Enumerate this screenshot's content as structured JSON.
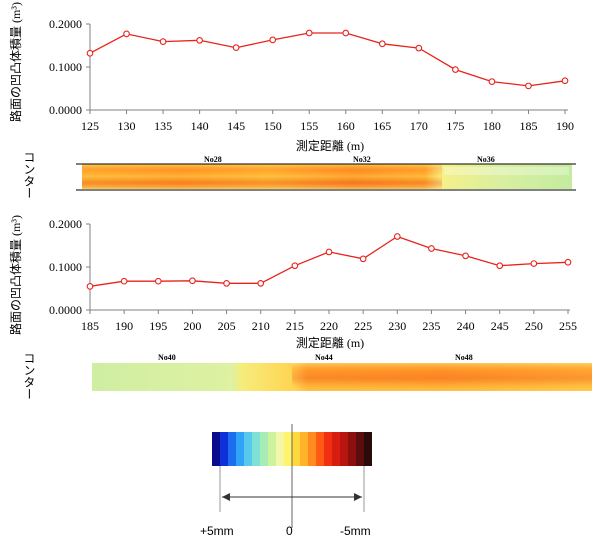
{
  "colors": {
    "series_line": "#e8231c",
    "axis": "#808080",
    "scale": [
      "#0a0a8c",
      "#0f2fd9",
      "#1e6cf0",
      "#2fa3f5",
      "#56c9ec",
      "#7fe0d6",
      "#a7ecb4",
      "#cdf2a0",
      "#f4f7a8",
      "#fff36b",
      "#ffd83b",
      "#ffb22a",
      "#ff8a1f",
      "#ff5a14",
      "#f03010",
      "#d81c10",
      "#b81410",
      "#8c1010",
      "#5a0d0d",
      "#2b0a0a"
    ]
  },
  "chart_data": [
    {
      "type": "line",
      "xlabel": "測定距離 (m)",
      "ylabel": "路面の凹凸体積量 (m³)",
      "x": [
        125,
        130,
        135,
        140,
        145,
        150,
        155,
        160,
        165,
        170,
        175,
        180,
        185,
        190
      ],
      "series": [
        {
          "values": [
            0.132,
            0.177,
            0.159,
            0.162,
            0.145,
            0.163,
            0.179,
            0.179,
            0.154,
            0.144,
            0.094,
            0.066,
            0.056,
            0.068
          ]
        }
      ],
      "xlim": [
        125,
        190
      ],
      "ylim": [
        0,
        0.2
      ],
      "yticks": [
        "0.0000",
        "0.1000",
        "0.2000"
      ],
      "grid": false
    },
    {
      "type": "line",
      "xlabel": "測定距離 (m)",
      "ylabel": "路面の凹凸体積量 (m³)",
      "x": [
        185,
        190,
        195,
        200,
        205,
        210,
        215,
        220,
        225,
        230,
        235,
        240,
        245,
        250,
        255
      ],
      "series": [
        {
          "values": [
            0.055,
            0.067,
            0.067,
            0.068,
            0.062,
            0.062,
            0.103,
            0.135,
            0.119,
            0.171,
            0.143,
            0.126,
            0.103,
            0.108,
            0.111
          ]
        }
      ],
      "xlim": [
        185,
        255
      ],
      "ylim": [
        0,
        0.2
      ],
      "yticks": [
        "0.0000",
        "0.1000",
        "0.2000"
      ],
      "grid": false
    }
  ],
  "contour1": {
    "label": "コンター",
    "markers": [
      "No28",
      "No32",
      "No36"
    ]
  },
  "contour2": {
    "label": "コンター",
    "markers": [
      "No40",
      "No44",
      "No48"
    ]
  },
  "scale": {
    "left_label": "+5mm",
    "center_label": "0",
    "right_label": "-5mm"
  }
}
